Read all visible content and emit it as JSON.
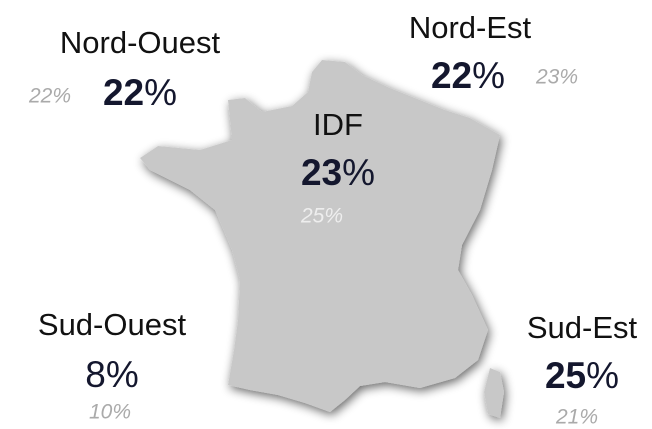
{
  "regions": [
    {
      "name": "Nord-Ouest",
      "value": "22",
      "unit": "%",
      "highlight": true,
      "previous": "22%"
    },
    {
      "name": "Nord-Est",
      "value": "22",
      "unit": "%",
      "highlight": true,
      "previous": "23%"
    },
    {
      "name": "IDF",
      "value": "23",
      "unit": "%",
      "highlight": true,
      "previous": "25%"
    },
    {
      "name": "Sud-Ouest",
      "value": "8",
      "unit": "%",
      "highlight": false,
      "previous": "10%"
    },
    {
      "name": "Sud-Est",
      "value": "25",
      "unit": "%",
      "highlight": true,
      "previous": "21%"
    }
  ]
}
